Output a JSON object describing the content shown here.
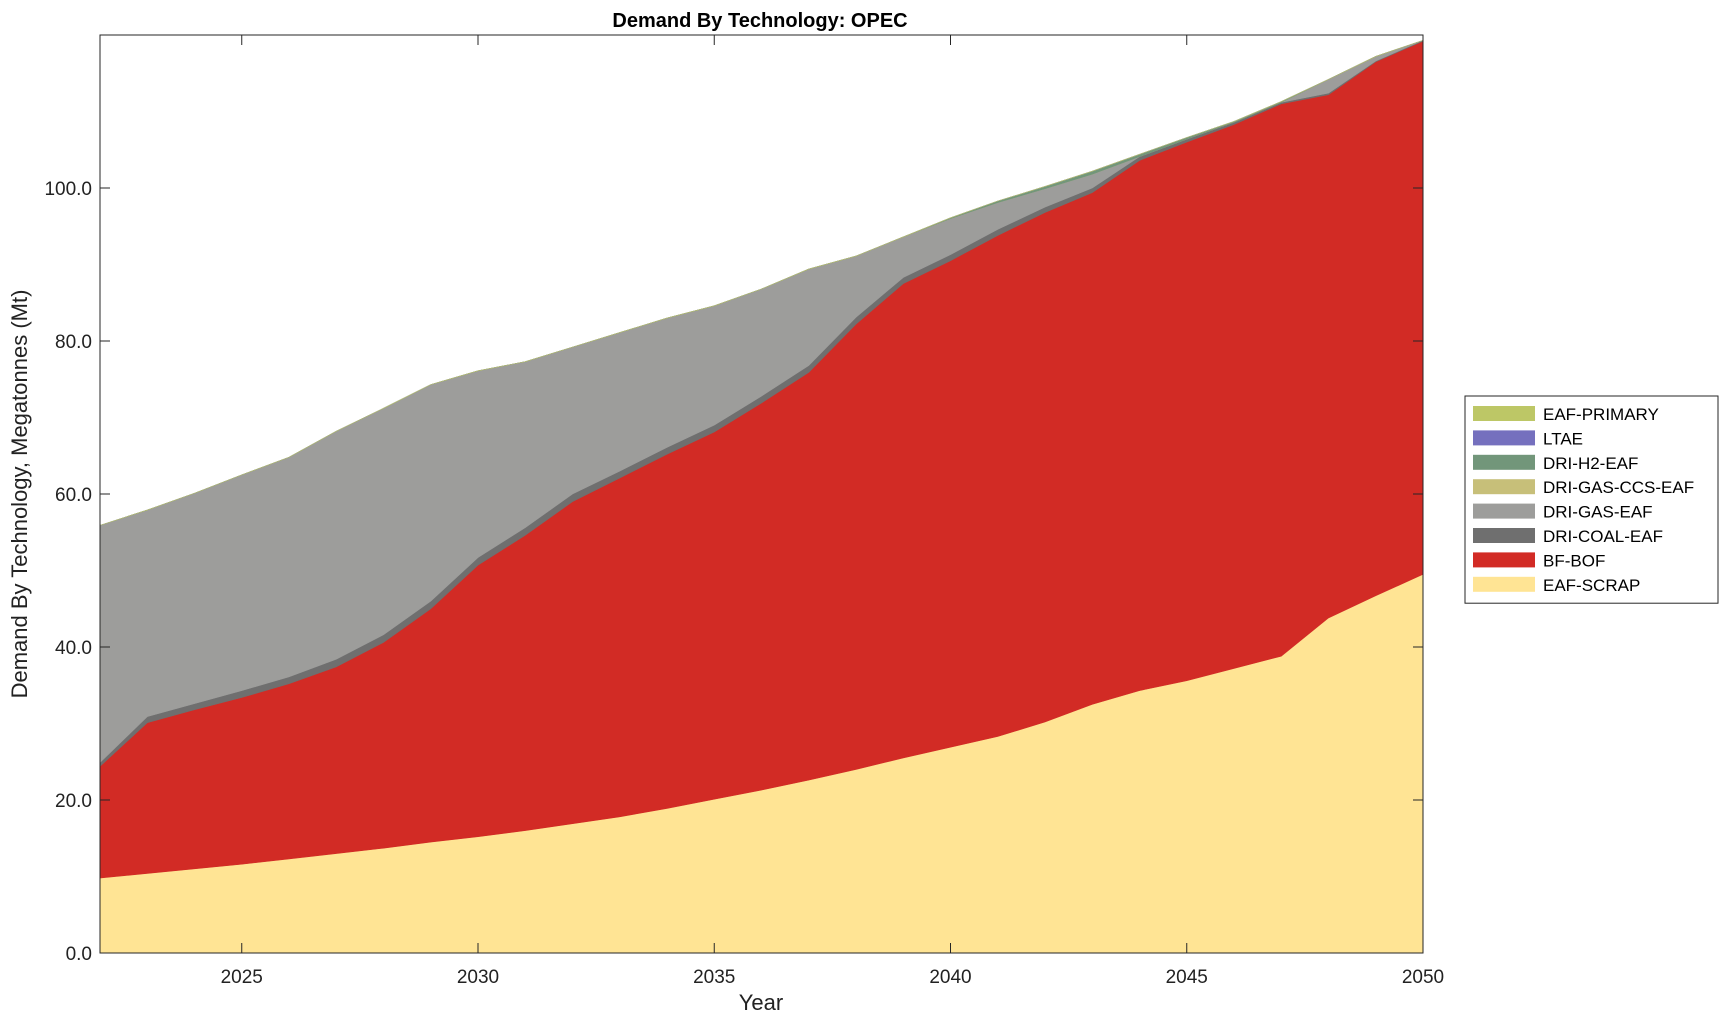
{
  "chart_data": {
    "type": "area",
    "stacked": true,
    "title": "Demand By Technology: OPEC",
    "xlabel": "Year",
    "ylabel": "Demand By Technology, Megatonnes (Mt)",
    "xlim": [
      2022,
      2050
    ],
    "ylim": [
      0,
      120
    ],
    "xticks": [
      2025,
      2030,
      2035,
      2040,
      2045,
      2050
    ],
    "xtick_labels": [
      "2025",
      "2030",
      "2035",
      "2040",
      "2045",
      "2050"
    ],
    "yticks": [
      0,
      20,
      40,
      60,
      80,
      100
    ],
    "ytick_labels": [
      "0.0",
      "20.0",
      "40.0",
      "60.0",
      "80.0",
      "100.0"
    ],
    "grid": false,
    "legend_position": "right",
    "x": [
      2022,
      2023,
      2024,
      2025,
      2026,
      2027,
      2028,
      2029,
      2030,
      2031,
      2032,
      2033,
      2034,
      2035,
      2036,
      2037,
      2038,
      2039,
      2040,
      2041,
      2042,
      2043,
      2044,
      2045,
      2046,
      2047,
      2048,
      2049,
      2050
    ],
    "series": [
      {
        "name": "EAF-SCRAP",
        "color": "#ffe494",
        "values": [
          9.8,
          10.4,
          11.0,
          11.6,
          12.3,
          13.0,
          13.7,
          14.5,
          15.2,
          16.0,
          16.9,
          17.8,
          18.9,
          20.1,
          21.3,
          22.6,
          24.0,
          25.5,
          26.9,
          28.3,
          30.2,
          32.5,
          34.3,
          35.6,
          37.2,
          38.8,
          43.8,
          46.7,
          49.5
        ]
      },
      {
        "name": "BF-BOF",
        "color": "#d22b25",
        "values": [
          14.6,
          19.7,
          20.8,
          21.8,
          22.9,
          24.4,
          26.9,
          30.5,
          35.5,
          38.6,
          42.1,
          44.3,
          46.3,
          48.0,
          50.6,
          53.3,
          58.2,
          62.0,
          63.6,
          65.5,
          66.6,
          66.9,
          69.3,
          70.4,
          71.1,
          72.2,
          68.4,
          69.8,
          69.7
        ]
      },
      {
        "name": "DRI-COAL-EAF",
        "color": "#6f6f6f",
        "values": [
          0.5,
          0.8,
          0.8,
          0.9,
          0.9,
          1.0,
          1.0,
          1.0,
          1.0,
          1.0,
          1.0,
          0.9,
          0.9,
          0.9,
          0.9,
          0.9,
          0.9,
          0.8,
          0.8,
          0.8,
          0.7,
          0.6,
          0.5,
          0.4,
          0.3,
          0.2,
          0.2,
          0.1,
          0.1
        ]
      },
      {
        "name": "DRI-GAS-EAF",
        "color": "#9d9d9b",
        "values": [
          31.0,
          27.0,
          27.5,
          28.2,
          28.7,
          29.8,
          29.6,
          28.3,
          24.4,
          21.7,
          19.2,
          18.1,
          16.9,
          15.6,
          14.0,
          12.6,
          8.0,
          5.3,
          4.7,
          3.5,
          2.4,
          1.8,
          0.0,
          0.0,
          0.0,
          0.0,
          1.8,
          0.6,
          0.0
        ]
      },
      {
        "name": "DRI-GAS-CCS-EAF",
        "color": "#c7bf79",
        "values": [
          0,
          0,
          0,
          0,
          0,
          0,
          0,
          0,
          0,
          0,
          0,
          0,
          0,
          0,
          0,
          0,
          0,
          0,
          0,
          0,
          0,
          0,
          0,
          0,
          0,
          0,
          0,
          0,
          0
        ]
      },
      {
        "name": "DRI-H2-EAF",
        "color": "#72967a",
        "values": [
          0,
          0,
          0,
          0,
          0,
          0,
          0,
          0,
          0,
          0,
          0,
          0,
          0,
          0,
          0,
          0,
          0,
          0,
          0.1,
          0.2,
          0.3,
          0.4,
          0.3,
          0.2,
          0.1,
          0.1,
          0.0,
          0.0,
          0.0
        ]
      },
      {
        "name": "LTAE",
        "color": "#7570be",
        "values": [
          0,
          0,
          0,
          0,
          0,
          0,
          0,
          0,
          0,
          0,
          0,
          0,
          0,
          0,
          0,
          0,
          0,
          0,
          0,
          0,
          0,
          0,
          0,
          0,
          0,
          0,
          0,
          0,
          0
        ]
      },
      {
        "name": "EAF-PRIMARY",
        "color": "#bdc766",
        "values": [
          0,
          0,
          0,
          0,
          0,
          0,
          0,
          0,
          0,
          0,
          0,
          0,
          0,
          0,
          0,
          0,
          0,
          0,
          0,
          0,
          0,
          0,
          0,
          0,
          0,
          0,
          0,
          0,
          0
        ]
      }
    ],
    "legend_order": [
      "EAF-PRIMARY",
      "LTAE",
      "DRI-H2-EAF",
      "DRI-GAS-CCS-EAF",
      "DRI-GAS-EAF",
      "DRI-COAL-EAF",
      "BF-BOF",
      "EAF-SCRAP"
    ]
  }
}
